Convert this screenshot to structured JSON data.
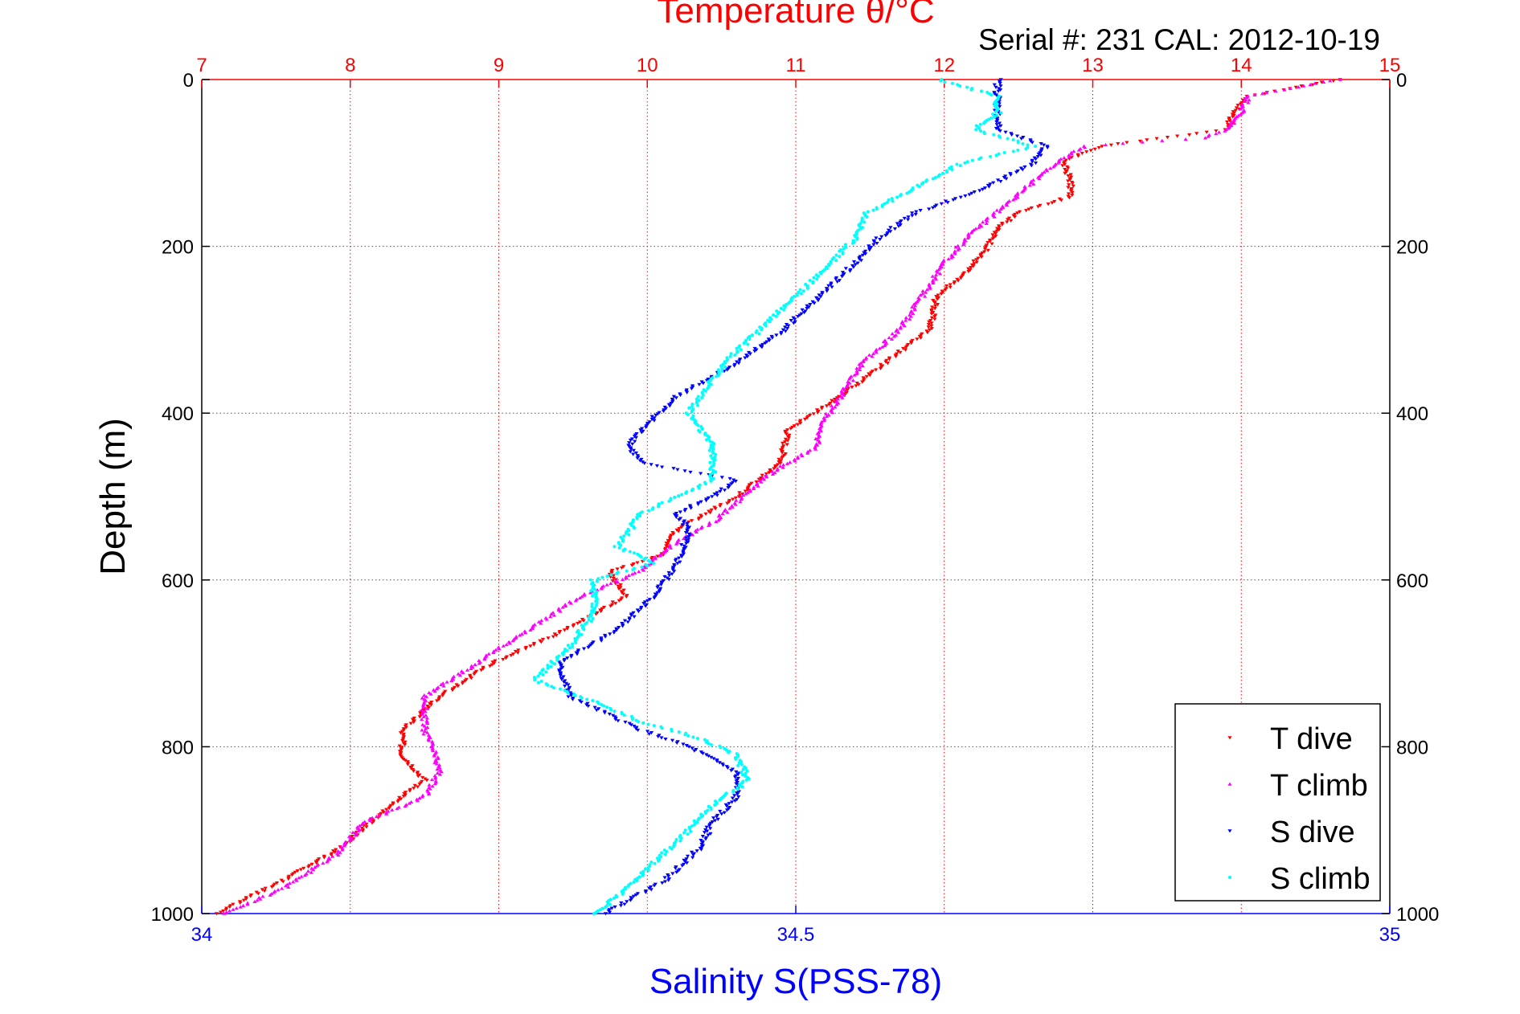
{
  "chart_data": {
    "type": "scatter",
    "title": "Temperature θ/°C",
    "subtitle": "Serial #: 231  CAL: 2012-10-19",
    "ylabel": "Depth (m)",
    "xlabel_bottom": "Salinity S(PSS-78)",
    "xlabel_top": "Temperature θ/°C",
    "y_reversed": true,
    "ylim": [
      0,
      1000
    ],
    "y_ticks": [
      0,
      200,
      400,
      600,
      800,
      1000
    ],
    "x_top_lim": [
      7,
      15
    ],
    "x_top_ticks": [
      7,
      8,
      9,
      10,
      11,
      12,
      13,
      14,
      15
    ],
    "x_bottom_lim": [
      34,
      35
    ],
    "x_bottom_ticks": [
      34,
      34.5,
      35
    ],
    "grid": true,
    "legend_position": "bottom-right",
    "colors": {
      "temperature_axis": "#ff0000",
      "salinity_axis": "#0000ff",
      "t_dive": "#ff0000",
      "t_climb": "#ff00ff",
      "s_dive": "#0000ff",
      "s_climb": "#00ffff"
    },
    "series": [
      {
        "name": "T dive",
        "axis": "temperature",
        "color": "#ff0000",
        "marker": "triangle-down",
        "depth": [
          0,
          20,
          40,
          60,
          80,
          90,
          100,
          120,
          140,
          160,
          180,
          200,
          230,
          260,
          300,
          340,
          380,
          420,
          460,
          500,
          540,
          570,
          590,
          620,
          660,
          700,
          740,
          780,
          810,
          840,
          880,
          920,
          960,
          1000
        ],
        "values": [
          14.65,
          14.05,
          13.95,
          13.9,
          13.05,
          12.9,
          12.8,
          12.85,
          12.85,
          12.5,
          12.35,
          12.3,
          12.15,
          11.95,
          11.9,
          11.6,
          11.3,
          10.95,
          10.9,
          10.6,
          10.2,
          10.1,
          9.75,
          9.85,
          9.45,
          8.95,
          8.6,
          8.35,
          8.35,
          8.5,
          8.2,
          7.95,
          7.55,
          7.1
        ]
      },
      {
        "name": "T climb",
        "axis": "temperature",
        "color": "#ff00ff",
        "marker": "triangle-up",
        "depth": [
          0,
          20,
          40,
          60,
          70,
          80,
          100,
          130,
          160,
          190,
          220,
          260,
          300,
          340,
          380,
          420,
          440,
          470,
          500,
          530,
          560,
          590,
          620,
          660,
          700,
          740,
          780,
          800,
          830,
          860,
          890,
          930,
          970,
          1000
        ],
        "values": [
          14.65,
          14.05,
          14.0,
          13.9,
          13.75,
          12.95,
          12.75,
          12.55,
          12.35,
          12.15,
          12.0,
          11.85,
          11.7,
          11.45,
          11.3,
          11.15,
          11.15,
          10.85,
          10.65,
          10.45,
          10.15,
          9.95,
          9.55,
          9.2,
          8.85,
          8.5,
          8.5,
          8.55,
          8.6,
          8.5,
          8.1,
          7.9,
          7.55,
          7.15
        ]
      },
      {
        "name": "S dive",
        "axis": "salinity",
        "color": "#0000ff",
        "marker": "triangle-down",
        "depth": [
          0,
          20,
          40,
          60,
          80,
          100,
          130,
          160,
          190,
          220,
          260,
          300,
          340,
          380,
          420,
          440,
          460,
          480,
          500,
          520,
          540,
          580,
          620,
          660,
          700,
          740,
          780,
          800,
          830,
          860,
          890,
          920,
          960,
          1000
        ],
        "values": [
          34.67,
          34.67,
          34.67,
          34.67,
          34.71,
          34.7,
          34.66,
          34.6,
          34.57,
          34.55,
          34.52,
          34.49,
          34.45,
          34.4,
          34.37,
          34.36,
          34.37,
          34.45,
          34.43,
          34.4,
          34.41,
          34.4,
          34.38,
          34.35,
          34.3,
          34.31,
          34.37,
          34.41,
          34.45,
          34.45,
          34.43,
          34.42,
          34.39,
          34.34
        ]
      },
      {
        "name": "S climb",
        "axis": "salinity",
        "color": "#00ffff",
        "marker": "dot",
        "depth": [
          0,
          20,
          40,
          60,
          80,
          100,
          130,
          160,
          190,
          220,
          260,
          300,
          340,
          380,
          400,
          440,
          480,
          520,
          560,
          580,
          600,
          640,
          680,
          720,
          740,
          770,
          790,
          810,
          840,
          870,
          900,
          940,
          980,
          1000
        ],
        "values": [
          34.62,
          34.67,
          34.67,
          34.65,
          34.7,
          34.64,
          34.6,
          34.56,
          34.55,
          34.53,
          34.5,
          34.47,
          34.44,
          34.42,
          34.41,
          34.43,
          34.43,
          34.37,
          34.35,
          34.38,
          34.33,
          34.33,
          34.31,
          34.28,
          34.32,
          34.37,
          34.42,
          34.45,
          34.46,
          34.43,
          34.41,
          34.38,
          34.35,
          34.33
        ]
      }
    ]
  }
}
